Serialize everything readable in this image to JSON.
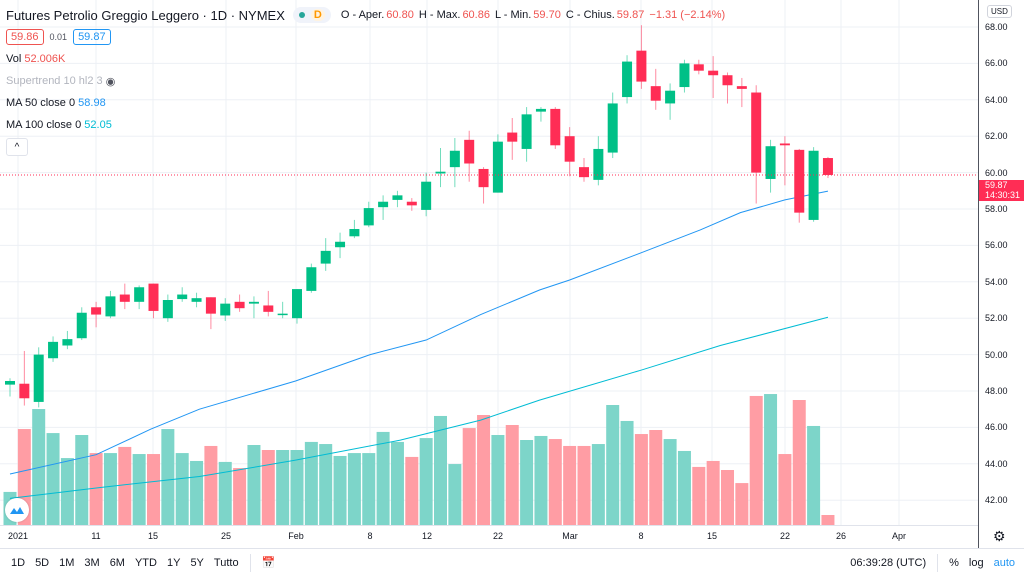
{
  "header": {
    "title": "Futures Petrolio Greggio Leggero · 1D · NYMEX",
    "interval_badge": "D",
    "ohlc": {
      "o_label": "O - Aper.",
      "o": "60.80",
      "h_label": "H - Max.",
      "h": "60.86",
      "l_label": "L - Min.",
      "l": "59.70",
      "c_label": "C - Chius.",
      "c": "59.87",
      "change": "−1.31 (−2.14%)"
    }
  },
  "quote": {
    "bid": "59.86",
    "spread": "0.01",
    "ask": "59.87"
  },
  "indicators": {
    "vol_label": "Vol",
    "vol_value": "52.006K",
    "supertrend": "Supertrend 10 hl2 3",
    "ma50_label": "MA 50 close 0",
    "ma50_value": "58.98",
    "ma100_label": "MA 100 close 0",
    "ma100_value": "52.05",
    "collapse": "^"
  },
  "price_axis": {
    "currency": "USD",
    "ticks": [
      "68.00",
      "66.00",
      "64.00",
      "62.00",
      "60.00",
      "58.00",
      "56.00",
      "54.00",
      "52.00",
      "50.00",
      "48.00",
      "46.00",
      "44.00",
      "42.00"
    ],
    "last_price": "59.87",
    "countdown": "14:30:31"
  },
  "time_axis": {
    "ticks": [
      "2021",
      "11",
      "15",
      "25",
      "Feb",
      "8",
      "12",
      "22",
      "Mar",
      "8",
      "15",
      "22",
      "26",
      "Apr"
    ]
  },
  "toolbar": {
    "ranges": [
      "1D",
      "5D",
      "1M",
      "3M",
      "6M",
      "YTD",
      "1Y",
      "5Y",
      "Tutto"
    ],
    "time": "06:39:28 (UTC)",
    "percent": "%",
    "log": "log",
    "auto": "auto"
  },
  "colors": {
    "up": "#00c087",
    "down": "#ff2d55",
    "vol_up": "#7dd5c9",
    "vol_down": "#ff9da4",
    "ma50": "#2196f3",
    "ma100": "#00bcd4",
    "grid": "#edf0f5"
  },
  "chart_data": {
    "type": "candlestick",
    "ylim": [
      41,
      69
    ],
    "ohlc": [
      [
        48.35,
        48.7,
        47.7,
        48.55
      ],
      [
        48.4,
        50.2,
        47.2,
        47.6
      ],
      [
        47.4,
        50.4,
        47.1,
        50.0
      ],
      [
        49.8,
        51.0,
        49.6,
        50.7
      ],
      [
        50.5,
        51.3,
        50.3,
        50.85
      ],
      [
        50.9,
        52.6,
        50.8,
        52.3
      ],
      [
        52.6,
        52.9,
        51.5,
        52.2
      ],
      [
        52.1,
        53.5,
        52.0,
        53.2
      ],
      [
        53.3,
        53.9,
        52.5,
        52.9
      ],
      [
        52.9,
        53.8,
        52.5,
        53.7
      ],
      [
        53.9,
        53.9,
        52.0,
        52.4
      ],
      [
        52.0,
        53.3,
        51.8,
        53.0
      ],
      [
        53.05,
        53.7,
        52.9,
        53.3
      ],
      [
        52.9,
        53.4,
        52.6,
        53.1
      ],
      [
        53.15,
        53.15,
        51.4,
        52.25
      ],
      [
        52.15,
        53.1,
        51.85,
        52.8
      ],
      [
        52.9,
        53.3,
        52.35,
        52.55
      ],
      [
        52.8,
        53.2,
        52.0,
        52.9
      ],
      [
        52.7,
        53.5,
        52.1,
        52.35
      ],
      [
        52.2,
        52.9,
        52.0,
        52.25
      ],
      [
        52.0,
        53.6,
        51.7,
        53.6
      ],
      [
        53.5,
        55.0,
        53.4,
        54.8
      ],
      [
        55.0,
        56.4,
        54.6,
        55.7
      ],
      [
        55.9,
        56.7,
        55.3,
        56.2
      ],
      [
        56.5,
        57.4,
        56.4,
        56.9
      ],
      [
        57.1,
        58.4,
        57.0,
        58.05
      ],
      [
        58.1,
        58.75,
        57.4,
        58.4
      ],
      [
        58.5,
        59.0,
        58.1,
        58.75
      ],
      [
        58.4,
        58.6,
        57.9,
        58.2
      ],
      [
        57.95,
        60.0,
        57.6,
        59.5
      ],
      [
        59.95,
        61.35,
        59.2,
        60.05
      ],
      [
        60.3,
        61.9,
        59.2,
        61.2
      ],
      [
        61.8,
        62.3,
        59.5,
        60.5
      ],
      [
        60.2,
        60.3,
        58.3,
        59.2
      ],
      [
        58.9,
        62.1,
        58.9,
        61.7
      ],
      [
        62.2,
        63.0,
        60.7,
        61.7
      ],
      [
        61.3,
        63.6,
        60.6,
        63.2
      ],
      [
        63.35,
        63.6,
        62.8,
        63.5
      ],
      [
        63.5,
        63.6,
        61.3,
        61.5
      ],
      [
        62.0,
        62.5,
        59.8,
        60.6
      ],
      [
        60.3,
        60.8,
        59.5,
        59.75
      ],
      [
        59.6,
        62.0,
        59.3,
        61.3
      ],
      [
        61.1,
        64.4,
        60.8,
        63.8
      ],
      [
        64.15,
        66.45,
        63.8,
        66.1
      ],
      [
        66.7,
        68.1,
        64.6,
        65.0
      ],
      [
        64.75,
        65.7,
        63.45,
        63.95
      ],
      [
        63.8,
        64.9,
        62.9,
        64.5
      ],
      [
        64.7,
        66.2,
        64.4,
        66.0
      ],
      [
        65.95,
        66.2,
        65.4,
        65.6
      ],
      [
        65.6,
        66.4,
        64.1,
        65.35
      ],
      [
        65.35,
        65.5,
        63.8,
        64.8
      ],
      [
        64.75,
        65.2,
        63.6,
        64.6
      ],
      [
        64.4,
        64.8,
        58.3,
        60.0
      ],
      [
        59.65,
        61.8,
        58.9,
        61.45
      ],
      [
        61.6,
        62.0,
        59.3,
        61.5
      ],
      [
        61.25,
        61.3,
        57.25,
        57.8
      ],
      [
        57.4,
        61.4,
        57.3,
        61.2
      ],
      [
        60.8,
        60.86,
        59.7,
        59.87
      ]
    ],
    "volume_k": [
      172,
      499,
      603,
      478,
      348,
      468,
      374,
      374,
      406,
      369,
      369,
      499,
      374,
      333,
      411,
      328,
      296,
      416,
      390,
      390,
      390,
      432,
      421,
      359,
      374,
      374,
      484,
      432,
      354,
      452,
      567,
      317,
      504,
      572,
      468,
      520,
      442,
      463,
      447,
      411,
      411,
      421,
      624,
      541,
      473,
      494,
      447,
      385,
      302,
      333,
      286,
      218,
      671,
      681,
      369,
      650,
      515,
      52.006
    ],
    "ma50": [
      [
        0,
        43.44
      ],
      [
        6,
        44.5
      ],
      [
        9.8,
        45.9
      ],
      [
        13.2,
        47.0
      ],
      [
        19.9,
        48.55
      ],
      [
        25.1,
        50.0
      ],
      [
        29,
        50.8
      ],
      [
        32.8,
        52.2
      ],
      [
        36.9,
        53.55
      ],
      [
        39,
        54.1
      ],
      [
        44,
        55.6
      ],
      [
        48.1,
        56.85
      ],
      [
        50.9,
        57.8
      ],
      [
        54,
        58.5
      ],
      [
        57,
        58.98
      ]
    ],
    "ma100": [
      [
        0,
        42.1
      ],
      [
        6.3,
        42.7
      ],
      [
        13.2,
        43.3
      ],
      [
        19.9,
        44.2
      ],
      [
        27.2,
        45.3
      ],
      [
        32.8,
        46.4
      ],
      [
        36.9,
        47.5
      ],
      [
        44,
        49.15
      ],
      [
        49.5,
        50.5
      ],
      [
        57,
        52.05
      ]
    ]
  }
}
